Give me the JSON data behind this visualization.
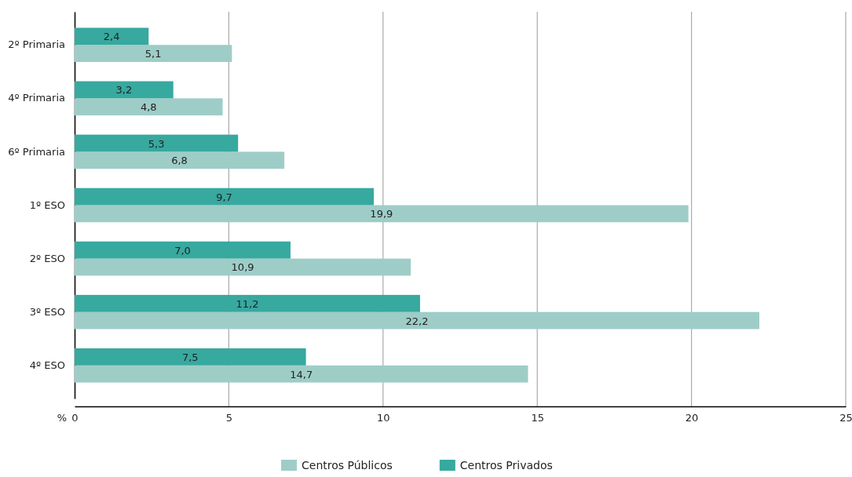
{
  "chart_data": {
    "type": "bar",
    "orientation": "horizontal",
    "xlabel": "%",
    "categories": [
      "2º Primaria",
      "4º Primaria",
      "6º Primaria",
      "1º ESO",
      "2º ESO",
      "3º ESO",
      "4º ESO"
    ],
    "series": [
      {
        "name": "Centros Públicos",
        "color": "#9ecdc8",
        "values": [
          5.1,
          4.8,
          6.8,
          19.9,
          10.9,
          22.2,
          14.7
        ],
        "value_labels": [
          "5,1",
          "4,8",
          "6,8",
          "19,9",
          "10,9",
          "22,2",
          "14,7"
        ]
      },
      {
        "name": "Centros Privados",
        "color": "#37a99f",
        "values": [
          2.4,
          3.2,
          5.3,
          9.7,
          7.0,
          11.2,
          7.5
        ],
        "value_labels": [
          "2,4",
          "3,2",
          "5,3",
          "9,7",
          "7,0",
          "11,2",
          "7,5"
        ]
      }
    ],
    "xlim": [
      0,
      25
    ],
    "xticks": [
      0,
      5,
      10,
      15,
      20,
      25
    ],
    "grid": "x",
    "legend": "bottom"
  }
}
